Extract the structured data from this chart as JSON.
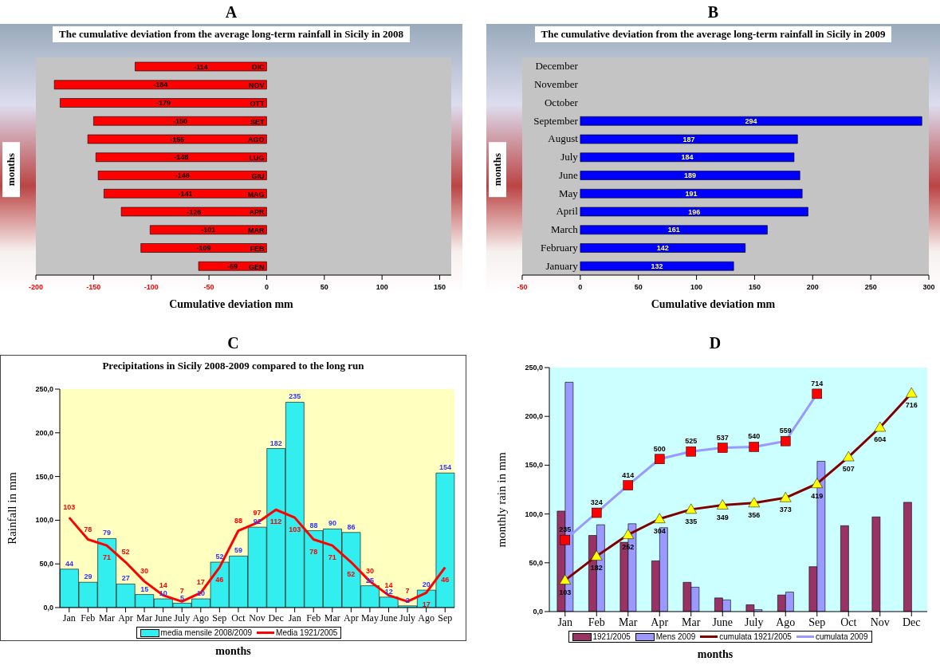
{
  "chart_data": [
    {
      "type": "bar",
      "orientation": "horizontal",
      "title": "The cumulative deviation from the average long-term rainfall in Sicily in 2008",
      "annotations": [
        "A"
      ],
      "xlabel": "Cumulative deviation mm",
      "ylabel": "months",
      "categories": [
        "DIC",
        "NOV",
        "OTT",
        "SET",
        "AGO",
        "LUG",
        "GIU",
        "MAG",
        "APR",
        "MAR",
        "FEB",
        "GEN"
      ],
      "values": [
        -114,
        -184,
        -179,
        -150,
        -155,
        -148,
        -146,
        -141,
        -126,
        -101,
        -109,
        -59
      ],
      "color": "#ff0000",
      "data_labels": true,
      "xlim": [
        -200,
        160
      ],
      "xticks": [
        -200,
        -150,
        -100,
        -50,
        0,
        50,
        100,
        150
      ]
    },
    {
      "type": "bar",
      "orientation": "horizontal",
      "title": "The cumulative deviation from the average long-term rainfall in Sicily in 2009",
      "annotations": [
        "B"
      ],
      "xlabel": "Cumulative deviation mm",
      "ylabel": "months",
      "categories": [
        "December",
        "November",
        "October",
        "September",
        "August",
        "July",
        "June",
        "May",
        "April",
        "March",
        "February",
        "January"
      ],
      "values": [
        null,
        null,
        null,
        294,
        187,
        184,
        189,
        191,
        196,
        161,
        142,
        132
      ],
      "color": "#0000ff",
      "data_labels": true,
      "xlim": [
        -50,
        300
      ],
      "xticks": [
        -50,
        0,
        50,
        100,
        150,
        200,
        250,
        300
      ]
    },
    {
      "type": "bar",
      "title": "Precipitations in Sicily 2008-2009 compared to the long run",
      "annotations": [
        "C"
      ],
      "xlabel": "months",
      "ylabel": "Rainfall in mm",
      "categories": [
        "Jan",
        "Feb",
        "Mar",
        "Apr",
        "Mar",
        "June",
        "July",
        "Ago",
        "Sep",
        "Oct",
        "Nov",
        "Dec",
        "Jan",
        "Feb",
        "Mar",
        "Apr",
        "May",
        "June",
        "July",
        "Ago",
        "Sep"
      ],
      "series": [
        {
          "name": "media mensile 2008/2009",
          "color": "#33eeee",
          "values": [
            44,
            29,
            79,
            27,
            15,
            10,
            5,
            10,
            52,
            59,
            92,
            182,
            235,
            88,
            90,
            86,
            25,
            12,
            2,
            20,
            154
          ]
        },
        {
          "name": "Media 1921/2005",
          "type": "line",
          "color": "#ff0000",
          "values": [
            103,
            78,
            71,
            52,
            30,
            14,
            7,
            17,
            46,
            88,
            97,
            112,
            103,
            78,
            71,
            52,
            30,
            14,
            7,
            17,
            46
          ]
        }
      ],
      "data_labels": true,
      "legend": "bottom",
      "ylim": [
        0,
        250
      ],
      "yticks": [
        {
          "value": 0,
          "label": "0,0"
        },
        {
          "value": 50,
          "label": "50,0"
        },
        {
          "value": 100,
          "label": "100,0"
        },
        {
          "value": 150,
          "label": "150,0"
        },
        {
          "value": 200,
          "label": "200,0"
        },
        {
          "value": 250,
          "label": "250,0"
        }
      ]
    },
    {
      "type": "bar",
      "annotations": [
        "D"
      ],
      "xlabel": "months",
      "ylabel": "monthly rain in mm",
      "categories": [
        "Jan",
        "Feb",
        "Mar",
        "Apr",
        "Mar",
        "June",
        "July",
        "Ago",
        "Sep",
        "Oct",
        "Nov",
        "Dec"
      ],
      "series": [
        {
          "name": "1921/2005",
          "color": "#993366",
          "values": [
            103,
            78,
            71,
            52,
            30,
            14,
            7,
            17,
            46,
            88,
            97,
            112
          ]
        },
        {
          "name": "Mens 2009",
          "color": "#9999ff",
          "values": [
            235,
            89,
            90,
            86,
            25,
            12,
            2,
            20,
            154,
            null,
            null,
            null
          ]
        },
        {
          "name": "cumulata 1921/2005",
          "type": "line",
          "axis": "y2",
          "marker": "triangle",
          "color": "#800000",
          "values": [
            103,
            182,
            252,
            304,
            335,
            349,
            356,
            373,
            419,
            507,
            604,
            716
          ],
          "value_labels": [
            "103",
            "182",
            "252",
            "304",
            "335",
            "349",
            "356",
            "373",
            "419",
            "507",
            "604",
            "716"
          ]
        },
        {
          "name": "cumulata 2009",
          "type": "line",
          "axis": "y2",
          "marker": "square",
          "color": "#9999ff",
          "values": [
            235,
            324,
            414,
            500,
            525,
            537,
            540,
            559,
            714,
            null,
            null,
            null
          ],
          "value_labels": [
            "235",
            "324",
            "414",
            "500",
            "525",
            "537",
            "540",
            "559",
            "714",
            null,
            null,
            null
          ]
        }
      ],
      "legend": "bottom",
      "ylim": [
        0,
        250
      ],
      "yticks": [
        {
          "value": 0,
          "label": "0,0"
        },
        {
          "value": 50,
          "label": "50,0"
        },
        {
          "value": 100,
          "label": "100,0"
        },
        {
          "value": 150,
          "label": "150,0"
        },
        {
          "value": 200,
          "label": "200,0"
        },
        {
          "value": 250,
          "label": "250,0"
        }
      ],
      "y2lim": [
        0,
        800
      ]
    }
  ]
}
